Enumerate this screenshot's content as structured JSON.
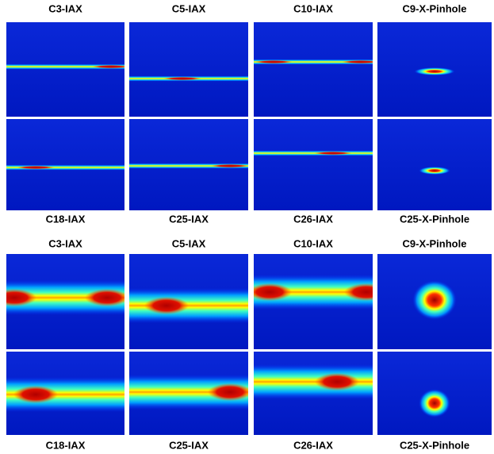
{
  "figures": [
    {
      "top_labels": [
        "C3-IAX",
        "C5-IAX",
        "C10-IAX",
        "C9-X-Pinhole"
      ],
      "bottom_labels": [
        "C18-IAX",
        "C25-IAX",
        "C26-IAX",
        "C25-X-Pinhole"
      ]
    },
    {
      "top_labels": [
        "C3-IAX",
        "C5-IAX",
        "C10-IAX",
        "C9-X-Pinhole"
      ],
      "bottom_labels": [
        "C18-IAX",
        "C25-IAX",
        "C26-IAX",
        "C25-X-Pinhole"
      ]
    }
  ]
}
